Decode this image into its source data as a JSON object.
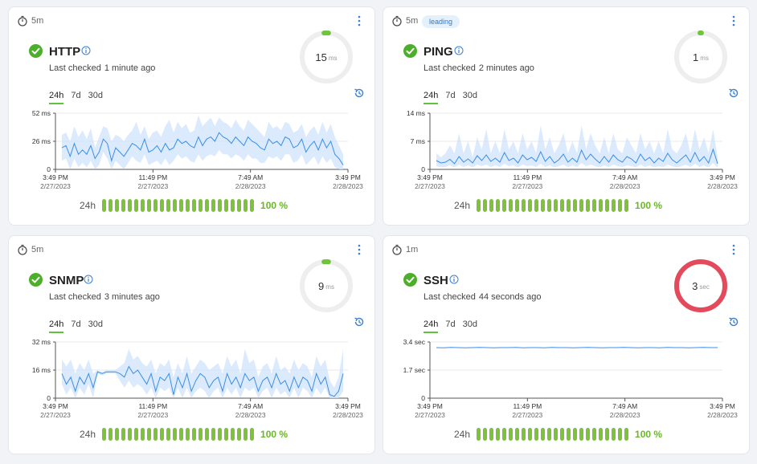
{
  "colors": {
    "accent": "#62c23e",
    "line": "#3b8fe8",
    "band": "#cfe3fb",
    "gauge_ok": "#6ec53b",
    "gauge_bad": "#e34a5c",
    "track": "#eeeeee"
  },
  "monitors": [
    {
      "interval": "5m",
      "badge": "",
      "title": "HTTP",
      "last_checked_label": "Last checked",
      "last_checked_value": "1 minute ago",
      "gauge_value": "15",
      "gauge_unit": "ms",
      "gauge_fraction": 0.03,
      "gauge_status": "ok",
      "tabs": [
        "24h",
        "7d",
        "30d"
      ],
      "active_tab": "24h",
      "uptime_label": "24h",
      "uptime_percent": "100 %",
      "uptime_bars": 24
    },
    {
      "interval": "5m",
      "badge": "leading",
      "title": "PING",
      "last_checked_label": "Last checked",
      "last_checked_value": "2 minutes ago",
      "gauge_value": "1",
      "gauge_unit": "ms",
      "gauge_fraction": 0.01,
      "gauge_status": "ok",
      "tabs": [
        "24h",
        "7d",
        "30d"
      ],
      "active_tab": "24h",
      "uptime_label": "24h",
      "uptime_percent": "100 %",
      "uptime_bars": 24
    },
    {
      "interval": "5m",
      "badge": "",
      "title": "SNMP",
      "last_checked_label": "Last checked",
      "last_checked_value": "3 minutes ago",
      "gauge_value": "9",
      "gauge_unit": "ms",
      "gauge_fraction": 0.03,
      "gauge_status": "ok",
      "tabs": [
        "24h",
        "7d",
        "30d"
      ],
      "active_tab": "24h",
      "uptime_label": "24h",
      "uptime_percent": "100 %",
      "uptime_bars": 24
    },
    {
      "interval": "1m",
      "badge": "",
      "title": "SSH",
      "last_checked_label": "Last checked",
      "last_checked_value": "44 seconds ago",
      "gauge_value": "3",
      "gauge_unit": "sec",
      "gauge_fraction": 1.0,
      "gauge_status": "bad",
      "tabs": [
        "24h",
        "7d",
        "30d"
      ],
      "active_tab": "24h",
      "uptime_label": "24h",
      "uptime_percent": "100 %",
      "uptime_bars": 24
    }
  ],
  "chart_data": [
    {
      "type": "area",
      "ylim": [
        0,
        52
      ],
      "yticks": [
        {
          "v": 0,
          "label": "0"
        },
        {
          "v": 26,
          "label": "26 ms"
        },
        {
          "v": 52,
          "label": "52 ms"
        }
      ],
      "xticks": [
        {
          "t": "3:49 PM",
          "d": "2/27/2023"
        },
        {
          "t": "11:49 PM",
          "d": "2/27/2023"
        },
        {
          "t": "7:49 AM",
          "d": "2/28/2023"
        },
        {
          "t": "3:49 PM",
          "d": "2/28/2023"
        }
      ],
      "values": [
        20,
        22,
        12,
        24,
        14,
        18,
        14,
        22,
        10,
        16,
        28,
        24,
        8,
        20,
        16,
        12,
        18,
        24,
        22,
        18,
        28,
        16,
        18,
        22,
        16,
        24,
        18,
        20,
        28,
        24,
        26,
        22,
        20,
        30,
        22,
        28,
        30,
        26,
        34,
        30,
        28,
        24,
        30,
        26,
        22,
        30,
        26,
        24,
        20,
        18,
        28,
        24,
        26,
        22,
        30,
        28,
        20,
        22,
        28,
        16,
        22,
        26,
        18,
        28,
        20,
        26,
        14,
        10,
        4
      ],
      "upper": [
        32,
        34,
        26,
        40,
        30,
        36,
        28,
        38,
        20,
        30,
        40,
        38,
        26,
        32,
        30,
        26,
        32,
        36,
        44,
        32,
        40,
        28,
        34,
        36,
        30,
        40,
        46,
        34,
        44,
        38,
        42,
        34,
        36,
        50,
        40,
        44,
        48,
        40,
        48,
        44,
        42,
        38,
        46,
        40,
        36,
        46,
        42,
        38,
        34,
        30,
        44,
        38,
        40,
        36,
        44,
        42,
        34,
        36,
        42,
        30,
        36,
        40,
        32,
        44,
        34,
        42,
        30,
        22,
        14
      ],
      "lower": [
        8,
        10,
        0,
        10,
        2,
        6,
        2,
        8,
        0,
        4,
        16,
        10,
        0,
        8,
        4,
        0,
        6,
        12,
        8,
        6,
        14,
        4,
        6,
        8,
        4,
        10,
        4,
        8,
        14,
        10,
        12,
        8,
        6,
        14,
        8,
        12,
        14,
        12,
        18,
        14,
        14,
        10,
        14,
        12,
        8,
        14,
        10,
        10,
        6,
        6,
        12,
        10,
        12,
        8,
        14,
        14,
        6,
        8,
        14,
        4,
        8,
        12,
        4,
        12,
        6,
        10,
        2,
        0,
        0
      ]
    },
    {
      "type": "area",
      "ylim": [
        0,
        14
      ],
      "yticks": [
        {
          "v": 0,
          "label": "0"
        },
        {
          "v": 7,
          "label": "7 ms"
        },
        {
          "v": 14,
          "label": "14 ms"
        }
      ],
      "xticks": [
        {
          "t": "3:49 PM",
          "d": "2/27/2023"
        },
        {
          "t": "11:49 PM",
          "d": "2/27/2023"
        },
        {
          "t": "7:49 AM",
          "d": "2/28/2023"
        },
        {
          "t": "3:49 PM",
          "d": "2/28/2023"
        }
      ],
      "values": [
        2.2,
        1.6,
        1.8,
        2.5,
        1.4,
        3.2,
        1.8,
        2.6,
        1.6,
        3.4,
        2.2,
        3.6,
        2,
        2.8,
        1.8,
        4.2,
        2.2,
        2.8,
        1.6,
        3.6,
        2.4,
        3,
        2,
        4.4,
        2,
        3.2,
        1.6,
        2.4,
        3.8,
        1.8,
        2.8,
        1.8,
        4.8,
        2.4,
        3.8,
        2.6,
        1.6,
        3.2,
        1.8,
        3.6,
        2.4,
        1.8,
        3.2,
        2.6,
        1.6,
        3.8,
        2.2,
        3,
        1.6,
        2.8,
        2,
        4,
        2.4,
        1.6,
        2.6,
        3.6,
        1.8,
        4.2,
        2,
        3.2,
        1.6,
        5,
        1.4
      ],
      "upper": [
        4,
        3,
        4,
        6,
        4,
        9,
        4,
        7,
        3,
        8,
        5,
        10,
        4,
        7,
        4,
        10,
        5,
        7,
        4,
        9,
        5,
        7,
        4,
        11,
        5,
        8,
        4,
        6,
        9,
        4,
        7,
        4,
        11,
        5,
        9,
        6,
        4,
        8,
        4,
        9,
        5,
        4,
        8,
        6,
        4,
        9,
        5,
        7,
        4,
        7,
        4,
        10,
        5,
        4,
        6,
        9,
        4,
        10,
        5,
        8,
        4,
        10,
        3
      ],
      "lower": [
        0.8,
        0.5,
        0.6,
        1,
        0.5,
        1.2,
        0.6,
        1,
        0.5,
        1.2,
        0.8,
        1.2,
        0.6,
        1,
        0.6,
        1.4,
        0.8,
        1,
        0.5,
        1.2,
        0.8,
        1,
        0.6,
        1.4,
        0.6,
        1,
        0.5,
        0.8,
        1.2,
        0.6,
        1,
        0.6,
        1.6,
        0.8,
        1.2,
        0.8,
        0.5,
        1,
        0.6,
        1.2,
        0.8,
        0.6,
        1,
        0.8,
        0.5,
        1.2,
        0.6,
        1,
        0.5,
        0.8,
        0.6,
        1.2,
        0.8,
        0.5,
        0.8,
        1.2,
        0.6,
        1.4,
        0.6,
        1,
        0.5,
        1.6,
        0.4
      ]
    },
    {
      "type": "area",
      "ylim": [
        0,
        32
      ],
      "yticks": [
        {
          "v": 0,
          "label": "0"
        },
        {
          "v": 16,
          "label": "16 ms"
        },
        {
          "v": 32,
          "label": "32 ms"
        }
      ],
      "xticks": [
        {
          "t": "3:49 PM",
          "d": "2/27/2023"
        },
        {
          "t": "11:49 PM",
          "d": "2/27/2023"
        },
        {
          "t": "7:49 AM",
          "d": "2/28/2023"
        },
        {
          "t": "3:49 PM",
          "d": "2/28/2023"
        }
      ],
      "values": [
        14,
        8,
        12,
        4,
        12,
        8,
        14,
        6,
        15,
        14,
        15,
        15,
        15,
        14,
        12,
        18,
        14,
        16,
        12,
        8,
        14,
        4,
        12,
        10,
        14,
        2,
        12,
        6,
        14,
        4,
        10,
        14,
        12,
        6,
        10,
        12,
        4,
        14,
        8,
        12,
        6,
        14,
        10,
        12,
        4,
        10,
        12,
        6,
        14,
        8,
        10,
        4,
        12,
        6,
        12,
        10,
        4,
        14,
        8,
        12,
        2,
        1,
        4,
        14
      ],
      "upper": [
        22,
        18,
        22,
        14,
        20,
        16,
        22,
        14,
        16,
        15,
        16,
        16,
        16,
        18,
        20,
        28,
        22,
        24,
        20,
        18,
        22,
        14,
        20,
        18,
        22,
        12,
        20,
        14,
        24,
        14,
        18,
        22,
        20,
        16,
        18,
        20,
        14,
        24,
        18,
        22,
        14,
        28,
        20,
        22,
        12,
        18,
        20,
        14,
        24,
        16,
        18,
        14,
        22,
        16,
        20,
        18,
        12,
        24,
        18,
        22,
        10,
        6,
        12,
        28
      ],
      "lower": [
        8,
        2,
        6,
        0,
        6,
        2,
        8,
        0,
        14,
        13,
        14,
        14,
        14,
        10,
        6,
        10,
        6,
        8,
        6,
        2,
        6,
        0,
        6,
        4,
        6,
        0,
        6,
        0,
        6,
        0,
        4,
        6,
        4,
        0,
        4,
        6,
        0,
        6,
        2,
        6,
        0,
        6,
        4,
        6,
        0,
        4,
        6,
        0,
        6,
        2,
        4,
        0,
        6,
        0,
        6,
        4,
        0,
        6,
        2,
        6,
        0,
        0,
        0,
        4
      ]
    },
    {
      "type": "line",
      "ylim": [
        0,
        3.4
      ],
      "yticks": [
        {
          "v": 0,
          "label": "0"
        },
        {
          "v": 1.7,
          "label": "1.7 sec"
        },
        {
          "v": 3.4,
          "label": "3.4 sec"
        }
      ],
      "xticks": [
        {
          "t": "3:49 PM",
          "d": "2/27/2023"
        },
        {
          "t": "11:49 PM",
          "d": "2/27/2023"
        },
        {
          "t": "7:49 AM",
          "d": "2/28/2023"
        },
        {
          "t": "3:49 PM",
          "d": "2/28/2023"
        }
      ],
      "values": [
        3.06,
        3.05,
        3.07,
        3.06,
        3.05,
        3.06,
        3.07,
        3.06,
        3.05,
        3.06,
        3.06,
        3.07,
        3.05,
        3.06,
        3.06,
        3.05,
        3.07,
        3.06,
        3.06,
        3.05,
        3.06,
        3.07,
        3.06,
        3.05,
        3.06,
        3.06,
        3.07,
        3.06,
        3.05,
        3.06,
        3.06,
        3.05,
        3.07,
        3.06,
        3.06,
        3.05,
        3.06,
        3.07,
        3.06,
        3.06
      ],
      "upper": [],
      "lower": []
    }
  ]
}
